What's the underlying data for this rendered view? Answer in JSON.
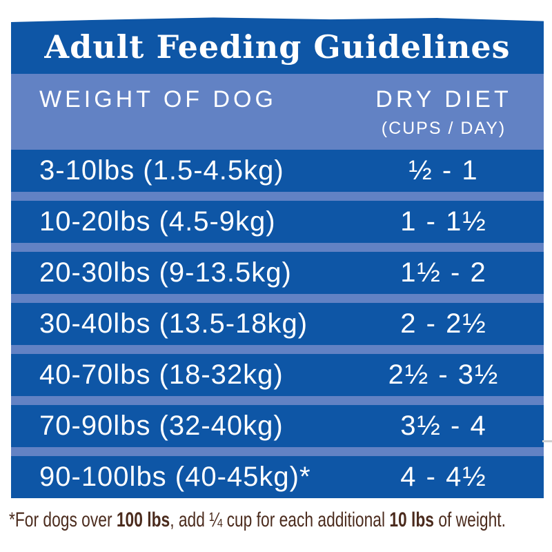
{
  "title": "Adult Feeding Guidelines",
  "colors": {
    "dark_blue": "#0e56a6",
    "light_blue": "#6282c4",
    "text_white": "#ffffff",
    "footnote_brown": "#4b2b1d",
    "background": "#ffffff"
  },
  "table": {
    "columns": [
      {
        "label": "WEIGHT OF DOG",
        "sublabel": ""
      },
      {
        "label": "DRY DIET",
        "sublabel": "(CUPS / DAY)"
      }
    ],
    "rows": [
      {
        "weight": "3-10lbs (1.5-4.5kg)",
        "cups": "½ - 1"
      },
      {
        "weight": "10-20lbs (4.5-9kg)",
        "cups": "1 - 1½"
      },
      {
        "weight": "20-30lbs (9-13.5kg)",
        "cups": "1½ - 2"
      },
      {
        "weight": "30-40lbs (13.5-18kg)",
        "cups": "2 - 2½"
      },
      {
        "weight": "40-70lbs (18-32kg)",
        "cups": "2½ - 3½"
      },
      {
        "weight": "70-90lbs (32-40kg)",
        "cups": "3½ - 4"
      },
      {
        "weight": "90-100lbs (40-45kg)*",
        "cups": "4 - 4½"
      }
    ]
  },
  "footnote": {
    "parts": [
      {
        "text": "*For dogs over ",
        "bold": false
      },
      {
        "text": "100 lbs",
        "bold": true
      },
      {
        "text": ", add ¼ cup for each additional ",
        "bold": false
      },
      {
        "text": "10 lbs",
        "bold": true
      },
      {
        "text": " of weight.",
        "bold": false
      }
    ]
  }
}
